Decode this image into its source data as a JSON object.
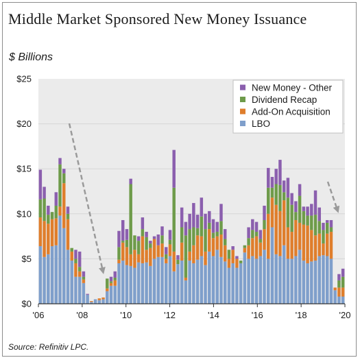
{
  "title": "Middle Market Sponsored New Money Issuance",
  "subtitle": "$ Billions",
  "source": "Source: Refinitiv LPC.",
  "colors": {
    "lbo": "#7f9fcb",
    "addon": "#df7e2c",
    "recap": "#6e9b4a",
    "other": "#8b5fae",
    "plot_bg": "#ebebeb",
    "arrow": "#9a9a9a"
  },
  "chart_data": {
    "type": "bar",
    "stacked": true,
    "title": "Middle Market Sponsored New Money Issuance",
    "ylabel": "$ Billions",
    "ylim": [
      0,
      25
    ],
    "yticks": [
      "$0",
      "$5",
      "$10",
      "$15",
      "$20",
      "$25"
    ],
    "xticks": [
      "'06",
      "'08",
      "'10",
      "'12",
      "'14",
      "'16",
      "'18",
      "'20"
    ],
    "x_period": "monthly",
    "legend": [
      "New Money - Other",
      "Dividend Recap",
      "Add-On Acquisition",
      "LBO"
    ],
    "legend_position": "top-right",
    "series": [
      {
        "name": "LBO",
        "values": [
          6.4,
          5.2,
          5.5,
          6.4,
          6.5,
          9.8,
          8.4,
          6.0,
          4.8,
          3.0,
          3.0,
          2.3,
          1.0,
          0.2,
          0.5,
          0.4,
          0.5,
          1.4,
          2.0,
          2.0,
          4.5,
          4.8,
          4.3,
          4.2,
          4.0,
          4.6,
          4.5,
          4.6,
          4.2,
          5.0,
          5.2,
          5.2,
          4.5,
          5.3,
          3.6,
          4.4,
          4.8,
          2.6,
          4.8,
          4.5,
          4.9,
          5.3,
          4.3,
          5.8,
          5.3,
          6.0,
          5.2,
          4.7,
          4.0,
          4.5,
          4.0,
          4.5,
          5.7,
          5.0,
          5.3,
          5.0,
          5.3,
          6.0,
          5.0,
          8.5,
          5.5,
          5.3,
          6.5,
          5.0,
          5.0,
          5.3,
          6.0,
          4.8,
          4.5,
          4.7,
          4.8,
          5.3,
          5.4,
          5.3,
          5.0,
          1.5,
          0.8,
          0.8
        ]
      },
      {
        "name": "Add-On Acquisition",
        "values": [
          3.2,
          4.0,
          3.4,
          3.0,
          3.0,
          1.0,
          5.0,
          3.4,
          1.0,
          1.5,
          0.6,
          0.4,
          0.0,
          0.1,
          0.0,
          0.2,
          0.2,
          0.3,
          0.3,
          0.6,
          0.4,
          2.0,
          2.0,
          1.3,
          2.0,
          0.9,
          3.0,
          1.4,
          2.0,
          2.2,
          1.3,
          1.5,
          0.5,
          1.3,
          2.2,
          0.0,
          2.0,
          0.3,
          1.0,
          2.0,
          2.7,
          2.2,
          1.5,
          2.5,
          2.0,
          1.5,
          2.5,
          1.8,
          1.0,
          1.5,
          1.0,
          0.0,
          0.5,
          1.5,
          2.0,
          2.5,
          1.5,
          2.3,
          5.0,
          3.3,
          5.5,
          5.0,
          5.0,
          3.5,
          3.0,
          4.0,
          3.0,
          4.0,
          4.2,
          3.5,
          2.8,
          2.5,
          1.3,
          2.5,
          3.0,
          0.3,
          1.0,
          1.0
        ]
      },
      {
        "name": "Dividend Recap",
        "values": [
          2.0,
          2.5,
          1.0,
          0.8,
          1.4,
          4.7,
          1.1,
          0.6,
          0.4,
          0.5,
          0.5,
          0.3,
          0.0,
          0.0,
          0.0,
          0.0,
          0.0,
          1.1,
          0.2,
          0.3,
          1.4,
          0.2,
          0.8,
          7.8,
          1.6,
          1.5,
          0.8,
          1.4,
          0.5,
          0.0,
          0.0,
          0.9,
          0.5,
          0.5,
          7.1,
          0.5,
          1.7,
          4.7,
          2.5,
          2.0,
          0.8,
          2.2,
          2.5,
          0.7,
          0.6,
          0.5,
          1.5,
          0.7,
          1.0,
          0.0,
          0.0,
          0.3,
          0.3,
          0.8,
          0.9,
          0.5,
          0.4,
          1.0,
          2.9,
          1.1,
          2.3,
          2.9,
          0.9,
          3.3,
          3.0,
          0.9,
          3.0,
          1.5,
          1.1,
          1.6,
          2.3,
          1.4,
          1.5,
          1.2,
          0.5,
          0.0,
          0.8,
          1.2
        ]
      },
      {
        "name": "New Money - Other",
        "values": [
          3.3,
          1.3,
          1.0,
          0.0,
          1.5,
          0.7,
          0.5,
          0.8,
          0.0,
          1.0,
          1.7,
          0.6,
          0.1,
          0.0,
          0.0,
          0.0,
          0.0,
          0.0,
          0.5,
          0.7,
          1.8,
          2.3,
          1.2,
          0.6,
          0.0,
          0.5,
          1.3,
          0.6,
          0.3,
          0.3,
          1.2,
          1.0,
          0.8,
          1.1,
          4.2,
          0.5,
          2.2,
          1.5,
          1.7,
          2.7,
          1.5,
          2.1,
          1.7,
          1.3,
          1.5,
          1.1,
          1.9,
          1.1,
          0.0,
          0.4,
          0.3,
          0.0,
          0.0,
          1.2,
          1.2,
          1.1,
          1.0,
          1.6,
          2.2,
          1.2,
          1.7,
          2.8,
          1.3,
          2.2,
          1.3,
          1.2,
          1.3,
          0.5,
          1.0,
          1.3,
          2.7,
          1.5,
          0.8,
          0.3,
          0.8,
          0.0,
          0.7,
          0.9
        ]
      }
    ]
  }
}
